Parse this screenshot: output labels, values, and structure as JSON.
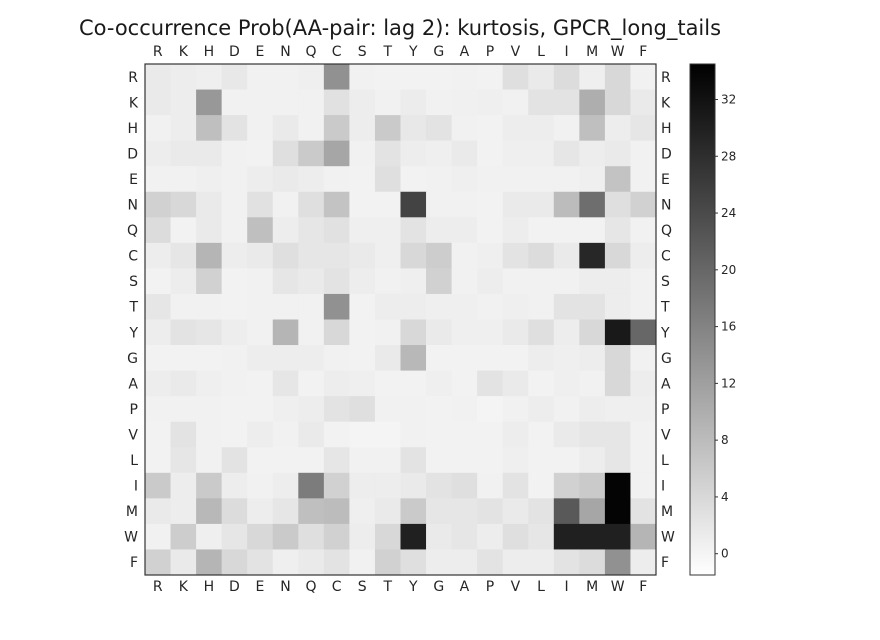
{
  "chart_data": {
    "type": "heatmap",
    "title": "Co-occurrence Prob(AA-pair: lag 2): kurtosis, GPCR_long_tails",
    "colormap": "Greys",
    "x_categories": [
      "R",
      "K",
      "H",
      "D",
      "E",
      "N",
      "Q",
      "C",
      "S",
      "T",
      "Y",
      "G",
      "A",
      "P",
      "V",
      "L",
      "I",
      "M",
      "W",
      "F"
    ],
    "y_categories": [
      "R",
      "K",
      "H",
      "D",
      "E",
      "N",
      "Q",
      "C",
      "S",
      "T",
      "Y",
      "G",
      "A",
      "P",
      "V",
      "L",
      "I",
      "M",
      "W",
      "F"
    ],
    "values": [
      [
        1.5,
        1.0,
        0.8,
        1.8,
        0.5,
        0.5,
        0.8,
        14.0,
        0.5,
        0.3,
        0.3,
        0.3,
        0.5,
        0.3,
        3.0,
        1.5,
        3.5,
        0.8,
        4.0,
        0.5
      ],
      [
        1.5,
        1.0,
        13.0,
        0.5,
        0.5,
        0.5,
        0.5,
        2.8,
        1.0,
        0.5,
        1.2,
        0.5,
        0.6,
        0.8,
        0.5,
        2.5,
        2.5,
        10.0,
        4.0,
        1.5
      ],
      [
        0.5,
        1.0,
        7.5,
        2.5,
        0.5,
        1.5,
        0.5,
        6.0,
        1.0,
        6.0,
        1.8,
        2.5,
        0.5,
        0.3,
        1.0,
        1.0,
        0.5,
        7.5,
        1.0,
        2.0
      ],
      [
        1.0,
        1.5,
        1.5,
        0.5,
        0.3,
        3.0,
        6.0,
        11.0,
        0.5,
        2.5,
        1.0,
        0.8,
        1.5,
        0.3,
        0.8,
        0.8,
        2.0,
        1.0,
        1.5,
        0.5
      ],
      [
        0.5,
        0.5,
        0.8,
        0.5,
        1.0,
        1.5,
        1.0,
        0.5,
        0.3,
        3.0,
        0.3,
        0.5,
        0.8,
        0.5,
        0.5,
        0.5,
        0.5,
        0.8,
        7.0,
        0.5
      ],
      [
        5.0,
        4.0,
        1.5,
        0.5,
        2.8,
        0.5,
        3.0,
        7.0,
        0.3,
        0.3,
        25.0,
        0.5,
        0.5,
        0.3,
        1.5,
        1.5,
        8.0,
        19.0,
        3.0,
        5.0
      ],
      [
        3.5,
        0.3,
        1.5,
        0.5,
        7.5,
        1.0,
        2.0,
        2.8,
        0.8,
        0.8,
        2.5,
        1.0,
        1.0,
        0.3,
        1.0,
        0.3,
        0.3,
        0.3,
        2.0,
        0.5
      ],
      [
        1.0,
        2.0,
        9.0,
        1.0,
        1.5,
        3.0,
        2.0,
        2.0,
        1.5,
        0.8,
        4.0,
        5.5,
        0.5,
        0.8,
        2.5,
        3.5,
        1.5,
        29.0,
        4.0,
        1.0
      ],
      [
        0.3,
        1.0,
        5.0,
        0.3,
        0.5,
        2.0,
        1.5,
        2.5,
        1.0,
        0.5,
        0.8,
        5.0,
        0.5,
        1.0,
        0.5,
        0.5,
        0.5,
        1.0,
        1.0,
        0.5
      ],
      [
        2.0,
        0.5,
        0.5,
        0.3,
        0.5,
        0.5,
        0.5,
        14.0,
        0.3,
        1.0,
        1.0,
        0.8,
        0.8,
        0.5,
        0.8,
        0.5,
        2.5,
        2.5,
        1.0,
        0.5
      ],
      [
        1.0,
        2.5,
        2.0,
        1.0,
        0.5,
        9.0,
        0.5,
        4.0,
        0.3,
        0.5,
        4.0,
        1.5,
        0.8,
        0.8,
        1.5,
        3.0,
        1.0,
        4.0,
        31.0,
        20.0
      ],
      [
        0.3,
        0.3,
        0.3,
        0.5,
        1.0,
        1.0,
        1.0,
        0.5,
        0.3,
        1.5,
        8.5,
        0.3,
        0.3,
        0.3,
        0.3,
        1.0,
        0.8,
        1.0,
        4.0,
        0.5
      ],
      [
        1.0,
        1.5,
        0.8,
        0.5,
        0.3,
        2.0,
        0.3,
        1.0,
        0.8,
        0.3,
        0.3,
        0.8,
        0.3,
        2.5,
        1.5,
        0.3,
        0.8,
        0.5,
        4.0,
        1.0
      ],
      [
        0.5,
        0.5,
        0.5,
        0.3,
        0.3,
        0.8,
        1.0,
        2.5,
        3.0,
        0.5,
        0.5,
        0.3,
        0.5,
        0.1,
        0.5,
        1.0,
        0.5,
        1.0,
        0.8,
        0.8
      ],
      [
        0.3,
        2.5,
        0.5,
        0.3,
        1.0,
        0.5,
        1.5,
        0.3,
        0.1,
        0.1,
        0.5,
        0.3,
        0.3,
        0.3,
        1.0,
        0.3,
        1.5,
        2.0,
        2.0,
        0.5
      ],
      [
        0.3,
        2.0,
        0.5,
        2.5,
        0.3,
        0.3,
        0.3,
        2.0,
        0.5,
        0.5,
        2.5,
        0.3,
        0.3,
        0.3,
        0.8,
        0.3,
        0.3,
        1.0,
        2.0,
        0.5
      ],
      [
        6.0,
        1.0,
        6.0,
        1.0,
        0.5,
        1.0,
        17.0,
        5.0,
        1.0,
        1.0,
        1.5,
        2.5,
        3.0,
        0.5,
        2.5,
        0.3,
        5.0,
        6.0,
        34.0,
        0.5
      ],
      [
        1.5,
        1.0,
        8.5,
        3.5,
        1.0,
        2.0,
        7.5,
        8.0,
        0.8,
        1.5,
        6.0,
        2.0,
        2.0,
        2.5,
        1.5,
        2.5,
        22.0,
        11.0,
        34.0,
        2.5
      ],
      [
        0.5,
        5.5,
        0.8,
        2.0,
        4.0,
        6.0,
        3.0,
        5.0,
        1.0,
        4.0,
        30.0,
        1.5,
        2.0,
        1.0,
        3.0,
        2.0,
        30.0,
        30.0,
        30.0,
        9.0
      ],
      [
        5.0,
        1.5,
        9.0,
        4.0,
        2.5,
        0.8,
        1.5,
        2.5,
        0.5,
        5.0,
        3.0,
        1.0,
        1.0,
        2.5,
        1.0,
        1.0,
        2.5,
        3.5,
        14.0,
        1.0
      ]
    ],
    "colorbar": {
      "min": -1.5,
      "max": 34.5,
      "ticks": [
        0,
        4,
        8,
        12,
        16,
        20,
        24,
        28,
        32
      ]
    }
  }
}
